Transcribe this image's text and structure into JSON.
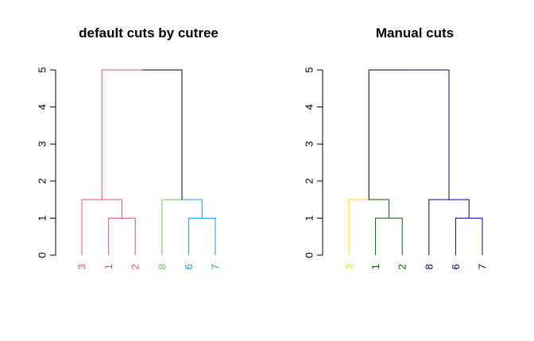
{
  "chart_data": [
    {
      "type": "dendrogram",
      "title": "default cuts by cutree",
      "xlabel": "",
      "ylabel": "",
      "ylim": [
        0,
        5
      ],
      "yticks": [
        0,
        1,
        2,
        3,
        4,
        5
      ],
      "grid": false,
      "leaves": [
        {
          "label": "3",
          "color": "#DF536B"
        },
        {
          "label": "1",
          "color": "#DF536B"
        },
        {
          "label": "2",
          "color": "#DF536B"
        },
        {
          "label": "8",
          "color": "#61D04F"
        },
        {
          "label": "6",
          "color": "#2297E6"
        },
        {
          "label": "7",
          "color": "#2297E6"
        }
      ],
      "merges": [
        {
          "left": "leaf:1",
          "right": "leaf:2",
          "height": 1,
          "color": "#DF536B"
        },
        {
          "left": "leaf:0",
          "right": "node:0",
          "height": 1.5,
          "color": "#DF536B"
        },
        {
          "left": "leaf:4",
          "right": "leaf:5",
          "height": 1,
          "color": "#2297E6"
        },
        {
          "left": "leaf:3",
          "right": "node:2",
          "height": 1.5,
          "color": "#61D04F",
          "right_color": "#2297E6"
        },
        {
          "left": "node:1",
          "right": "node:3",
          "height": 5,
          "color": "#000000",
          "left_color": "#DF536B"
        }
      ]
    },
    {
      "type": "dendrogram",
      "title": "Manual cuts",
      "xlabel": "",
      "ylabel": "",
      "ylim": [
        0,
        5
      ],
      "yticks": [
        0,
        1,
        2,
        3,
        4,
        5
      ],
      "grid": false,
      "leaves": [
        {
          "label": "3",
          "color": "#FFD700"
        },
        {
          "label": "1",
          "color": "#006400"
        },
        {
          "label": "2",
          "color": "#006400"
        },
        {
          "label": "8",
          "color": "#00008B"
        },
        {
          "label": "6",
          "color": "#00008B"
        },
        {
          "label": "7",
          "color": "#00008B"
        }
      ],
      "merges": [
        {
          "left": "leaf:1",
          "right": "leaf:2",
          "height": 1,
          "color": "#006400"
        },
        {
          "left": "leaf:0",
          "right": "node:0",
          "height": 1.5,
          "color": "#006400",
          "left_color": "#FFD700"
        },
        {
          "left": "leaf:4",
          "right": "leaf:5",
          "height": 1,
          "color": "#00008B"
        },
        {
          "left": "leaf:3",
          "right": "node:2",
          "height": 1.5,
          "color": "#00008B"
        },
        {
          "left": "node:1",
          "right": "node:3",
          "height": 5,
          "color": "#000000",
          "right_color": "#00008B"
        }
      ]
    }
  ]
}
